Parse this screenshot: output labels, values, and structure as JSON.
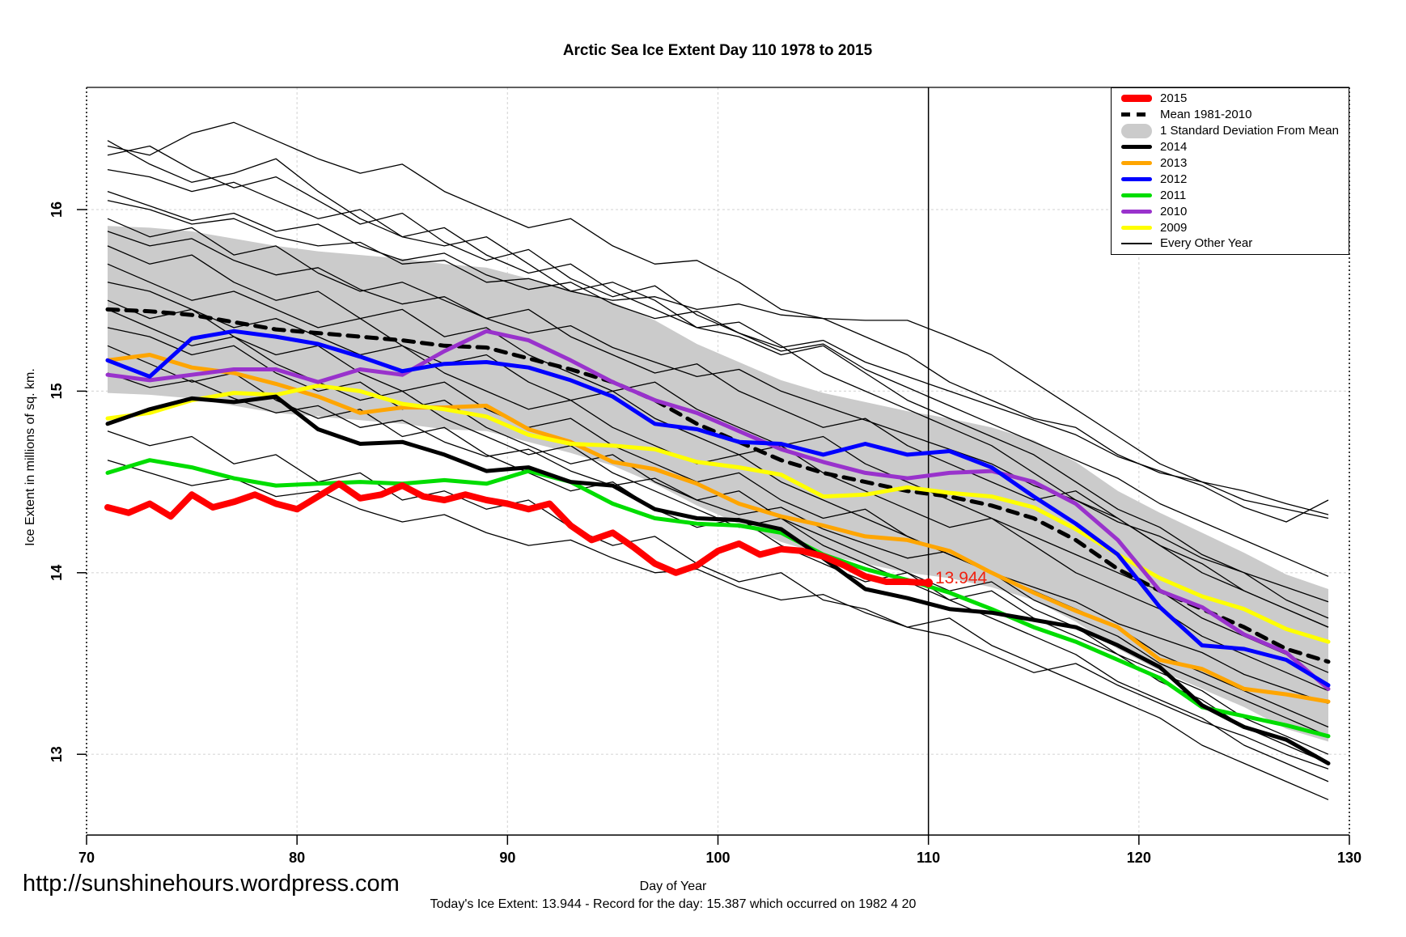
{
  "title": "Arctic Sea Ice Extent Day 110 1978 to 2015",
  "footer": {
    "url": "http://sunshinehours.wordpress.com",
    "note": "Today's Ice Extent: 13.944  - Record for the day: 15.387 which occurred on 1982 4 20"
  },
  "annotation": {
    "text": "13.944",
    "day": 110,
    "value": 13.944,
    "color": "#f02010"
  },
  "legend": {
    "items": [
      {
        "label": "2015",
        "style": "thick",
        "color": "#ff0000"
      },
      {
        "label": "Mean 1981-2010",
        "style": "dashed",
        "color": "#000000"
      },
      {
        "label": "1 Standard Deviation From Mean",
        "style": "band",
        "color": "#cbcbcb"
      },
      {
        "label": "2014",
        "style": "line",
        "color": "#000000"
      },
      {
        "label": "2013",
        "style": "line",
        "color": "#ffa500"
      },
      {
        "label": "2012",
        "style": "line",
        "color": "#0000ff"
      },
      {
        "label": "2011",
        "style": "line",
        "color": "#00dd00"
      },
      {
        "label": "2010",
        "style": "line",
        "color": "#9932cc"
      },
      {
        "label": "2009",
        "style": "line",
        "color": "#ffff00"
      },
      {
        "label": "Every Other Year",
        "style": "thin",
        "color": "#000000"
      }
    ]
  },
  "chart_data": {
    "type": "line",
    "title": "Arctic Sea Ice Extent Day 110 1978 to 2015",
    "xlabel": "Day of Year",
    "ylabel": "Ice Extent in millions of sq. km.",
    "xlim": [
      70,
      130
    ],
    "ylim": [
      12.55,
      16.67
    ],
    "x_ticks": [
      70,
      80,
      90,
      100,
      110,
      120,
      130
    ],
    "y_ticks": [
      13,
      14,
      15,
      16
    ],
    "grid": "dashed-light-gray",
    "grid_color": "#d9d9d9",
    "vline_x": 110,
    "legend_position": "top-right",
    "days": [
      71,
      73,
      75,
      77,
      79,
      81,
      83,
      85,
      87,
      89,
      91,
      93,
      95,
      97,
      99,
      101,
      103,
      105,
      107,
      109,
      111,
      113,
      115,
      117,
      119,
      121,
      123,
      125,
      127,
      129
    ],
    "band": {
      "label": "1 Standard Deviation From Mean",
      "color": "#cbcbcb",
      "upper": [
        15.91,
        15.9,
        15.88,
        15.84,
        15.8,
        15.77,
        15.75,
        15.73,
        15.7,
        15.68,
        15.62,
        15.56,
        15.49,
        15.39,
        15.26,
        15.16,
        15.06,
        14.99,
        14.94,
        14.89,
        14.85,
        14.8,
        14.73,
        14.61,
        14.45,
        14.33,
        14.22,
        14.11,
        13.99,
        13.91
      ],
      "lower": [
        14.99,
        14.98,
        14.96,
        14.92,
        14.88,
        14.86,
        14.84,
        14.82,
        14.79,
        14.78,
        14.72,
        14.66,
        14.59,
        14.49,
        14.37,
        14.27,
        14.17,
        14.1,
        14.05,
        14.0,
        13.97,
        13.92,
        13.85,
        13.73,
        13.58,
        13.46,
        13.36,
        13.26,
        13.14,
        13.07
      ]
    },
    "mean": {
      "label": "Mean 1981-2010",
      "color": "#000000",
      "values": [
        15.45,
        15.44,
        15.42,
        15.38,
        15.34,
        15.32,
        15.3,
        15.28,
        15.25,
        15.24,
        15.18,
        15.12,
        15.05,
        14.95,
        14.82,
        14.72,
        14.62,
        14.55,
        14.5,
        14.45,
        14.42,
        14.37,
        14.3,
        14.18,
        14.02,
        13.9,
        13.8,
        13.7,
        13.58,
        13.51
      ]
    },
    "series": [
      {
        "name": "2015",
        "color": "#ff0000",
        "width": 8,
        "days": [
          71,
          72,
          73,
          74,
          75,
          76,
          77,
          78,
          79,
          80,
          81,
          82,
          83,
          84,
          85,
          86,
          87,
          88,
          89,
          90,
          91,
          92,
          93,
          94,
          95,
          96,
          97,
          98,
          99,
          100,
          101,
          102,
          103,
          104,
          105,
          106,
          107,
          108,
          109,
          110
        ],
        "values": [
          14.36,
          14.33,
          14.38,
          14.31,
          14.43,
          14.36,
          14.39,
          14.43,
          14.38,
          14.35,
          14.42,
          14.49,
          14.41,
          14.43,
          14.48,
          14.42,
          14.4,
          14.43,
          14.4,
          14.38,
          14.35,
          14.38,
          14.26,
          14.18,
          14.22,
          14.14,
          14.05,
          14.0,
          14.04,
          14.12,
          14.16,
          14.1,
          14.13,
          14.12,
          14.09,
          14.04,
          13.98,
          13.95,
          13.95,
          13.944
        ]
      },
      {
        "name": "2014",
        "color": "#000000",
        "width": 5,
        "values": [
          14.82,
          14.9,
          14.96,
          14.94,
          14.97,
          14.79,
          14.71,
          14.72,
          14.65,
          14.56,
          14.58,
          14.5,
          14.48,
          14.35,
          14.3,
          14.29,
          14.24,
          14.08,
          13.91,
          13.86,
          13.8,
          13.78,
          13.74,
          13.7,
          13.6,
          13.48,
          13.27,
          13.15,
          13.08,
          12.95
        ]
      },
      {
        "name": "2013",
        "color": "#ffa500",
        "width": 5,
        "values": [
          15.17,
          15.2,
          15.13,
          15.1,
          15.04,
          14.97,
          14.88,
          14.91,
          14.91,
          14.92,
          14.79,
          14.72,
          14.61,
          14.57,
          14.49,
          14.38,
          14.31,
          14.26,
          14.2,
          14.18,
          14.12,
          14.0,
          13.89,
          13.79,
          13.7,
          13.52,
          13.47,
          13.36,
          13.33,
          13.29
        ]
      },
      {
        "name": "2012",
        "color": "#0000ff",
        "width": 5,
        "values": [
          15.17,
          15.08,
          15.29,
          15.33,
          15.3,
          15.26,
          15.19,
          15.11,
          15.15,
          15.16,
          15.13,
          15.06,
          14.97,
          14.82,
          14.79,
          14.72,
          14.71,
          14.65,
          14.71,
          14.65,
          14.67,
          14.58,
          14.42,
          14.27,
          14.1,
          13.81,
          13.6,
          13.58,
          13.52,
          13.38
        ]
      },
      {
        "name": "2011",
        "color": "#00dd00",
        "width": 5,
        "values": [
          14.55,
          14.62,
          14.58,
          14.52,
          14.48,
          14.49,
          14.5,
          14.49,
          14.51,
          14.49,
          14.56,
          14.5,
          14.38,
          14.3,
          14.27,
          14.26,
          14.22,
          14.1,
          14.02,
          13.96,
          13.89,
          13.8,
          13.7,
          13.62,
          13.52,
          13.42,
          13.26,
          13.21,
          13.16,
          13.1
        ]
      },
      {
        "name": "2010",
        "color": "#9932cc",
        "width": 5,
        "values": [
          15.09,
          15.06,
          15.09,
          15.12,
          15.12,
          15.05,
          15.12,
          15.09,
          15.22,
          15.33,
          15.28,
          15.17,
          15.05,
          14.95,
          14.88,
          14.78,
          14.68,
          14.61,
          14.55,
          14.52,
          14.55,
          14.56,
          14.5,
          14.38,
          14.18,
          13.9,
          13.81,
          13.66,
          13.56,
          13.36
        ]
      },
      {
        "name": "2009",
        "color": "#ffff00",
        "width": 5,
        "values": [
          14.85,
          14.88,
          14.95,
          14.99,
          14.98,
          15.03,
          15.0,
          14.93,
          14.9,
          14.86,
          14.76,
          14.71,
          14.7,
          14.68,
          14.61,
          14.58,
          14.54,
          14.42,
          14.43,
          14.47,
          14.44,
          14.42,
          14.36,
          14.24,
          14.1,
          13.97,
          13.87,
          13.8,
          13.69,
          13.62
        ]
      }
    ],
    "draw_order": [
      "2013",
      "2009",
      "2010",
      "2012",
      "2011",
      "2014",
      "2015"
    ],
    "background_series": {
      "label": "Every Other Year",
      "color": "#000000",
      "width": 1.3,
      "lines": [
        [
          16.35,
          16.3,
          16.42,
          16.48,
          16.38,
          16.28,
          16.2,
          16.25,
          16.1,
          16.0,
          15.9,
          15.95,
          15.8,
          15.7,
          15.72,
          15.6,
          15.45,
          15.4,
          15.3,
          15.2,
          15.05,
          14.95,
          14.85,
          14.8,
          14.65,
          14.55,
          14.5,
          14.45,
          14.38,
          14.32
        ],
        [
          16.22,
          16.18,
          16.1,
          16.15,
          16.05,
          15.95,
          16.0,
          15.85,
          15.9,
          15.75,
          15.65,
          15.7,
          15.55,
          15.45,
          15.35,
          15.38,
          15.25,
          15.1,
          15.0,
          14.9,
          14.8,
          14.7,
          14.55,
          14.4,
          14.3,
          14.15,
          14.0,
          13.9,
          13.8,
          13.7
        ],
        [
          16.05,
          16.0,
          15.92,
          15.95,
          15.85,
          15.8,
          15.82,
          15.7,
          15.72,
          15.6,
          15.62,
          15.55,
          15.5,
          15.52,
          15.45,
          15.48,
          15.42,
          15.4,
          15.39,
          15.39,
          15.3,
          15.2,
          15.05,
          14.9,
          14.75,
          14.6,
          14.5,
          14.4,
          14.35,
          14.3
        ],
        [
          16.38,
          16.25,
          16.15,
          16.2,
          16.28,
          16.1,
          15.95,
          15.85,
          15.8,
          15.85,
          15.7,
          15.55,
          15.6,
          15.5,
          15.35,
          15.3,
          15.2,
          15.25,
          15.1,
          14.95,
          14.85,
          14.75,
          14.65,
          14.5,
          14.35,
          14.25,
          14.1,
          14.0,
          13.85,
          13.75
        ],
        [
          15.95,
          15.85,
          15.9,
          15.75,
          15.8,
          15.65,
          15.55,
          15.6,
          15.5,
          15.4,
          15.45,
          15.3,
          15.2,
          15.1,
          15.15,
          15.0,
          14.9,
          14.8,
          14.85,
          14.7,
          14.6,
          14.5,
          14.4,
          14.45,
          14.3,
          14.15,
          14.05,
          13.9,
          13.8,
          13.7
        ],
        [
          15.8,
          15.7,
          15.75,
          15.6,
          15.5,
          15.55,
          15.4,
          15.45,
          15.3,
          15.35,
          15.2,
          15.1,
          15.0,
          15.05,
          14.9,
          14.8,
          14.7,
          14.75,
          14.6,
          14.5,
          14.4,
          14.3,
          14.2,
          14.1,
          14.0,
          13.9,
          13.75,
          13.65,
          13.55,
          13.45
        ],
        [
          15.7,
          15.6,
          15.5,
          15.55,
          15.45,
          15.35,
          15.4,
          15.25,
          15.15,
          15.2,
          15.05,
          14.95,
          15.0,
          14.85,
          14.75,
          14.65,
          14.7,
          14.55,
          14.45,
          14.35,
          14.25,
          14.3,
          14.15,
          14.0,
          13.9,
          13.8,
          13.65,
          13.55,
          13.45,
          13.35
        ],
        [
          15.6,
          15.55,
          15.45,
          15.35,
          15.4,
          15.3,
          15.2,
          15.25,
          15.1,
          15.0,
          14.9,
          14.95,
          14.8,
          14.7,
          14.6,
          14.65,
          14.5,
          14.4,
          14.3,
          14.2,
          14.1,
          14.0,
          13.9,
          13.8,
          13.7,
          13.55,
          13.45,
          13.35,
          13.25,
          13.15
        ],
        [
          15.5,
          15.4,
          15.45,
          15.3,
          15.2,
          15.25,
          15.1,
          15.0,
          15.05,
          14.9,
          14.8,
          14.85,
          14.7,
          14.6,
          14.5,
          14.55,
          14.4,
          14.3,
          14.35,
          14.2,
          14.1,
          14.0,
          13.85,
          13.75,
          13.65,
          13.5,
          13.4,
          13.3,
          13.2,
          13.1
        ],
        [
          15.35,
          15.3,
          15.2,
          15.25,
          15.1,
          15.0,
          15.05,
          14.9,
          14.95,
          14.8,
          14.7,
          14.6,
          14.65,
          14.5,
          14.4,
          14.45,
          14.3,
          14.2,
          14.1,
          14.0,
          13.9,
          13.95,
          13.8,
          13.7,
          13.55,
          13.45,
          13.35,
          13.2,
          13.1,
          13.0
        ],
        [
          15.25,
          15.15,
          15.05,
          15.1,
          14.95,
          14.85,
          14.9,
          14.75,
          14.8,
          14.65,
          14.55,
          14.45,
          14.5,
          14.35,
          14.25,
          14.3,
          14.15,
          14.05,
          13.95,
          14.0,
          13.85,
          13.75,
          13.65,
          13.55,
          13.4,
          13.3,
          13.2,
          13.05,
          12.95,
          12.85
        ],
        [
          14.78,
          14.7,
          14.75,
          14.6,
          14.65,
          14.5,
          14.55,
          14.4,
          14.45,
          14.35,
          14.4,
          14.25,
          14.15,
          14.2,
          14.05,
          13.95,
          14.0,
          13.85,
          13.8,
          13.7,
          13.75,
          13.6,
          13.5,
          13.4,
          13.3,
          13.2,
          13.05,
          12.95,
          12.85,
          12.75
        ],
        [
          14.62,
          14.55,
          14.48,
          14.52,
          14.42,
          14.45,
          14.35,
          14.28,
          14.32,
          14.22,
          14.15,
          14.18,
          14.08,
          14.0,
          14.02,
          13.92,
          13.85,
          13.88,
          13.78,
          13.7,
          13.65,
          13.55,
          13.45,
          13.5,
          13.38,
          13.28,
          13.18,
          13.1,
          13.0,
          12.92
        ],
        [
          15.1,
          15.02,
          15.06,
          14.96,
          14.88,
          14.92,
          14.8,
          14.84,
          14.72,
          14.64,
          14.68,
          14.56,
          14.48,
          14.52,
          14.4,
          14.32,
          14.36,
          14.24,
          14.16,
          14.08,
          14.12,
          14.0,
          13.92,
          13.84,
          13.72,
          13.64,
          13.56,
          13.44,
          13.36,
          13.28
        ],
        [
          16.1,
          16.02,
          15.94,
          15.98,
          15.88,
          15.92,
          15.8,
          15.72,
          15.76,
          15.64,
          15.56,
          15.6,
          15.48,
          15.4,
          15.44,
          15.32,
          15.24,
          15.28,
          15.16,
          15.08,
          15.0,
          14.92,
          14.84,
          14.76,
          14.64,
          14.56,
          14.48,
          14.36,
          14.28,
          14.4
        ],
        [
          15.88,
          15.8,
          15.84,
          15.72,
          15.64,
          15.68,
          15.56,
          15.48,
          15.52,
          15.4,
          15.32,
          15.36,
          15.24,
          15.16,
          15.08,
          15.12,
          15.0,
          14.92,
          14.84,
          14.76,
          14.68,
          14.6,
          14.48,
          14.4,
          14.28,
          14.2,
          14.08,
          14.0,
          13.92,
          13.84
        ],
        [
          15.45,
          15.35,
          15.25,
          15.3,
          15.15,
          15.05,
          14.95,
          15.0,
          14.85,
          14.75,
          14.65,
          14.7,
          14.55,
          14.45,
          14.35,
          14.25,
          14.3,
          14.15,
          14.05,
          13.95,
          13.85,
          13.9,
          13.75,
          13.65,
          13.55,
          13.4,
          13.3,
          13.15,
          13.05,
          12.95
        ],
        [
          16.3,
          16.35,
          16.22,
          16.12,
          16.18,
          16.05,
          15.92,
          15.98,
          15.82,
          15.72,
          15.78,
          15.62,
          15.52,
          15.58,
          15.42,
          15.32,
          15.22,
          15.26,
          15.12,
          15.02,
          14.92,
          14.82,
          14.72,
          14.62,
          14.52,
          14.38,
          14.28,
          14.18,
          14.08,
          13.98
        ]
      ]
    }
  }
}
